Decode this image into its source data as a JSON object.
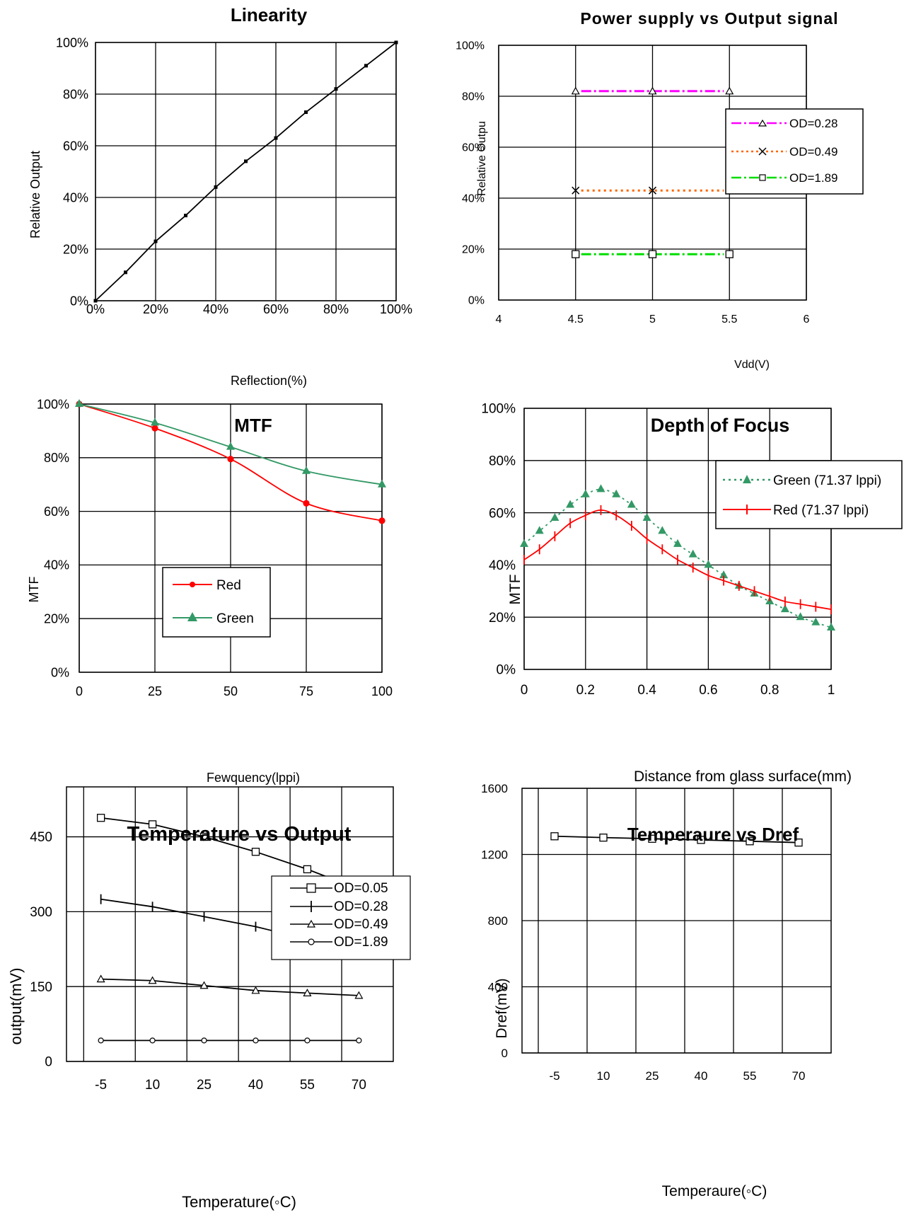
{
  "chart_data": [
    {
      "id": "linearity",
      "type": "line",
      "title": "Linearity",
      "xlabel": "Reflection(%)",
      "ylabel": "Relative Output",
      "xlim": [
        0,
        100
      ],
      "ylim": [
        0,
        100
      ],
      "xticks": [
        0,
        20,
        40,
        60,
        80,
        100
      ],
      "xtick_labels": [
        "0%",
        "20%",
        "40%",
        "60%",
        "80%",
        "100%"
      ],
      "yticks": [
        0,
        20,
        40,
        60,
        80,
        100
      ],
      "ytick_labels": [
        "0%",
        "20%",
        "40%",
        "60%",
        "80%",
        "100%"
      ],
      "grid": true,
      "series": [
        {
          "color": "#000000",
          "marker": "small-square",
          "x": [
            0,
            10,
            20,
            30,
            40,
            50,
            60,
            70,
            80,
            90,
            100
          ],
          "y": [
            0,
            11,
            23,
            33,
            44,
            54,
            63,
            73,
            82,
            91,
            100
          ]
        }
      ]
    },
    {
      "id": "power",
      "type": "line",
      "title": "Power supply vs Output signal",
      "xlabel": "Vdd(V)",
      "ylabel": "Relative Outpu",
      "xlim": [
        4,
        6
      ],
      "ylim": [
        0,
        100
      ],
      "xticks": [
        4,
        4.5,
        5,
        5.5,
        6
      ],
      "xtick_labels": [
        "4",
        "4.5",
        "5",
        "5.5",
        "6"
      ],
      "yticks": [
        0,
        20,
        40,
        60,
        80,
        100
      ],
      "ytick_labels": [
        "0%",
        "20%",
        "40%",
        "60%",
        "80%",
        "100%"
      ],
      "grid": true,
      "legend": "right",
      "series": [
        {
          "name": "OD=0.28",
          "color": "#ff00ff",
          "dash": "dashdot",
          "marker": "triangle",
          "x": [
            4.5,
            5,
            5.5
          ],
          "y": [
            82,
            82,
            82
          ]
        },
        {
          "name": "OD=0.49",
          "color": "#ff6600",
          "dash": "dotted",
          "marker": "x",
          "x": [
            4.5,
            5,
            5.5
          ],
          "y": [
            43,
            43,
            43
          ]
        },
        {
          "name": "OD=1.89",
          "color": "#00dd00",
          "dash": "dashdot",
          "marker": "square",
          "x": [
            4.5,
            5,
            5.5
          ],
          "y": [
            18,
            18,
            18
          ]
        }
      ]
    },
    {
      "id": "mtf",
      "type": "line",
      "title": "MTF",
      "xlabel": "Fewquency(lppi)",
      "ylabel": "MTF",
      "xlim": [
        0,
        100
      ],
      "ylim": [
        0,
        100
      ],
      "xticks": [
        0,
        25,
        50,
        75,
        100
      ],
      "xtick_labels": [
        "0",
        "25",
        "50",
        "75",
        "100"
      ],
      "yticks": [
        0,
        20,
        40,
        60,
        80,
        100
      ],
      "ytick_labels": [
        "0%",
        "20%",
        "40%",
        "60%",
        "80%",
        "100%"
      ],
      "grid": true,
      "legend": "center-left",
      "series": [
        {
          "name": "Red",
          "color": "#ff0000",
          "marker": "circle",
          "x": [
            0,
            25,
            50,
            75,
            100
          ],
          "y": [
            100,
            91,
            79.5,
            63,
            56.5
          ]
        },
        {
          "name": "Green",
          "color": "#339966",
          "marker": "triangle-filled",
          "x": [
            0,
            25,
            50,
            75,
            100
          ],
          "y": [
            100,
            93,
            84,
            75,
            70
          ]
        }
      ]
    },
    {
      "id": "dof",
      "type": "line",
      "title": "Depth of Focus",
      "xlabel": "Distance from glass surface(mm)",
      "ylabel": "MTF",
      "xlim": [
        0,
        1
      ],
      "ylim": [
        0,
        100
      ],
      "xticks": [
        0,
        0.2,
        0.4,
        0.6,
        0.8,
        1
      ],
      "xtick_labels": [
        "0",
        "0.2",
        "0.4",
        "0.6",
        "0.8",
        "1"
      ],
      "yticks": [
        0,
        20,
        40,
        60,
        80,
        100
      ],
      "ytick_labels": [
        "0%",
        "20%",
        "40%",
        "60%",
        "80%",
        "100%"
      ],
      "grid": true,
      "legend": "top-right",
      "series": [
        {
          "name": "Green (71.37 lppi)",
          "color": "#339966",
          "dash": "dotted",
          "marker": "triangle-filled",
          "x": [
            0,
            0.05,
            0.1,
            0.15,
            0.2,
            0.25,
            0.3,
            0.35,
            0.4,
            0.45,
            0.5,
            0.55,
            0.6,
            0.65,
            0.7,
            0.75,
            0.8,
            0.85,
            0.9,
            0.95,
            1.0
          ],
          "y": [
            48,
            53,
            58,
            63,
            67,
            69,
            67,
            63,
            58,
            53,
            48,
            44,
            40,
            36,
            32,
            29,
            26,
            23,
            20,
            18,
            16
          ]
        },
        {
          "name": "Red (71.37 lppi)",
          "color": "#ff0000",
          "marker": "vtick",
          "x": [
            0,
            0.05,
            0.1,
            0.15,
            0.2,
            0.25,
            0.3,
            0.35,
            0.4,
            0.45,
            0.5,
            0.55,
            0.6,
            0.65,
            0.7,
            0.75,
            0.8,
            0.85,
            0.9,
            0.95,
            1.0
          ],
          "y": [
            42,
            46,
            51,
            56,
            59,
            61,
            59,
            55,
            50,
            46,
            42,
            39,
            36,
            34,
            32,
            30,
            28,
            26,
            25,
            24,
            23
          ]
        }
      ]
    },
    {
      "id": "temp-output",
      "type": "line",
      "title": "Temperature vs Output",
      "xlabel": "Temperature(◦C)",
      "ylabel": "output(mV)",
      "xlim": [
        -15,
        80
      ],
      "ylim": [
        0,
        550
      ],
      "xticks": [
        -5,
        10,
        25,
        40,
        55,
        70
      ],
      "xtick_labels": [
        "-5",
        "10",
        "25",
        "40",
        "55",
        "70"
      ],
      "xgrid": [
        -10,
        5,
        20,
        35,
        50,
        65
      ],
      "yticks": [
        0,
        150,
        300,
        450
      ],
      "ytick_labels": [
        "0",
        "150",
        "300",
        "450"
      ],
      "grid": true,
      "legend": "top-right",
      "series": [
        {
          "name": "OD=0.05",
          "color": "#000000",
          "marker": "square",
          "x": [
            -5,
            10,
            25,
            40,
            55,
            70
          ],
          "y": [
            488,
            475,
            450,
            420,
            385,
            345
          ]
        },
        {
          "name": "OD=0.28",
          "color": "#000000",
          "marker": "vtick",
          "x": [
            -5,
            10,
            25,
            40,
            55,
            70
          ],
          "y": [
            325,
            310,
            290,
            270,
            245,
            227
          ]
        },
        {
          "name": "OD=0.49",
          "color": "#000000",
          "marker": "triangle",
          "x": [
            -5,
            10,
            25,
            40,
            55,
            70
          ],
          "y": [
            165,
            162,
            152,
            142,
            137,
            132
          ]
        },
        {
          "name": "OD=1.89",
          "color": "#000000",
          "marker": "circle",
          "x": [
            -5,
            10,
            25,
            40,
            55,
            70
          ],
          "y": [
            42,
            42,
            42,
            42,
            42,
            42
          ]
        }
      ],
      "extra_marker": {
        "shape": "diamond",
        "x": 70,
        "y": 227
      }
    },
    {
      "id": "temp-dref",
      "type": "line",
      "title": "Temperaure vs Dref",
      "xlabel": "Temperaure(◦C)",
      "ylabel": "Dref(mV)",
      "xlim": [
        -15,
        80
      ],
      "ylim": [
        0,
        1600
      ],
      "xticks": [
        -5,
        10,
        25,
        40,
        55,
        70
      ],
      "xtick_labels": [
        "-5",
        "10",
        "25",
        "40",
        "55",
        "70"
      ],
      "xgrid": [
        -10,
        5,
        20,
        35,
        50,
        65
      ],
      "yticks": [
        0,
        400,
        800,
        1200,
        1600
      ],
      "ytick_labels": [
        "0",
        "400",
        "800",
        "1200",
        "1600"
      ],
      "grid": true,
      "series": [
        {
          "color": "#000000",
          "marker": "square",
          "x": [
            -5,
            10,
            25,
            40,
            55,
            70
          ],
          "y": [
            1310,
            1302,
            1295,
            1288,
            1280,
            1272
          ]
        }
      ]
    }
  ]
}
